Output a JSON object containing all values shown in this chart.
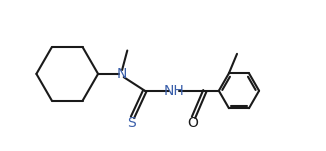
{
  "bg_color": "#ffffff",
  "bond_color": "#1a1a1a",
  "atom_color_N": "#3a5faa",
  "atom_color_S": "#3a5faa",
  "atom_color_O": "#1a1a1a",
  "line_width": 1.5,
  "font_size_atom": 8.5,
  "fig_width": 3.26,
  "fig_height": 1.51,
  "xlim": [
    -0.5,
    9.5
  ],
  "ylim": [
    -2.0,
    2.2
  ]
}
